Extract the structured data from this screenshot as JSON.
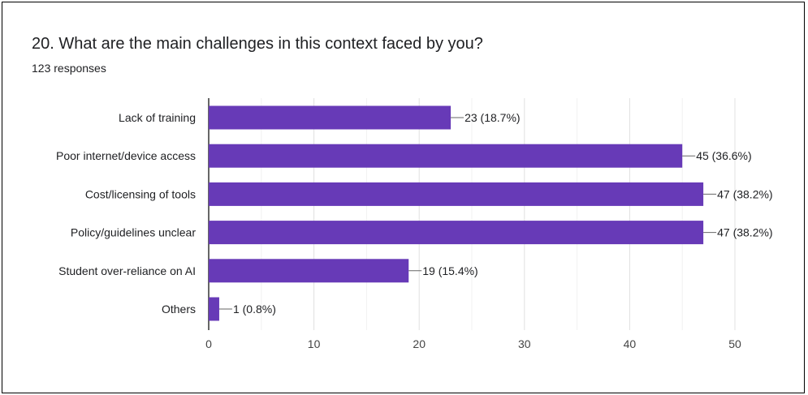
{
  "question": {
    "title": "20. What are the main challenges in this context faced by you?",
    "responses": "123 responses"
  },
  "colors": {
    "bar": "#673ab7",
    "grid": "#e0e0e0",
    "axis": "#333333",
    "leader": "#666666"
  },
  "chart_data": {
    "type": "bar",
    "orientation": "horizontal",
    "categories": [
      "Lack of training",
      "Poor internet/device access",
      "Cost/licensing of tools",
      "Policy/guidelines unclear",
      "Student over-reliance on AI",
      "Others"
    ],
    "values": [
      23,
      45,
      47,
      47,
      19,
      1
    ],
    "data_labels": [
      "23 (18.7%)",
      "45 (36.6%)",
      "47 (38.2%)",
      "47 (38.2%)",
      "19 (15.4%)",
      "1 (0.8%)"
    ],
    "xlim": [
      0,
      50
    ],
    "xticks": [
      0,
      10,
      20,
      30,
      40,
      50
    ],
    "grid": true
  }
}
